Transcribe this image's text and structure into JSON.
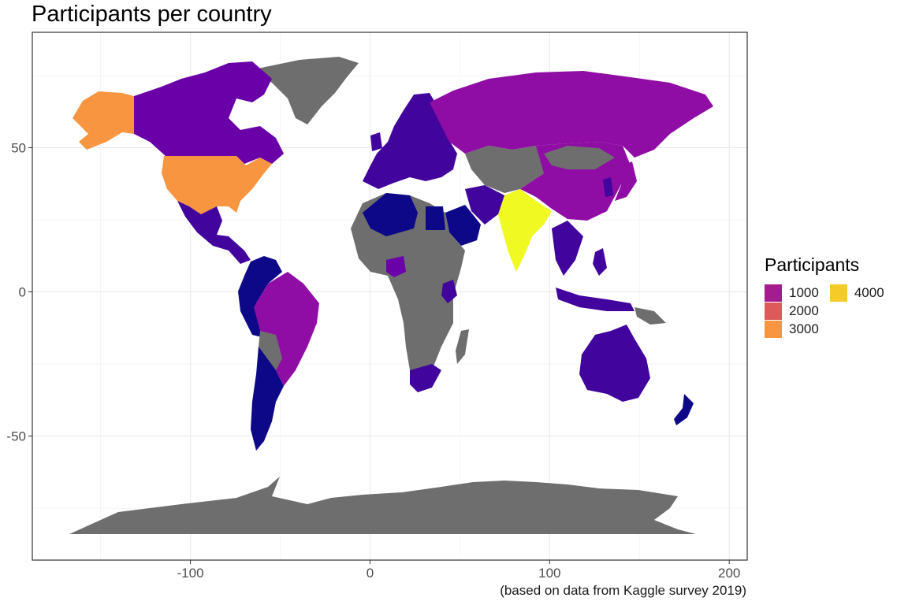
{
  "title": "Participants per country",
  "caption": "(based on data from Kaggle survey 2019)",
  "legend": {
    "title": "Participants",
    "items": [
      {
        "label": "1000",
        "color": "#a51c8e"
      },
      {
        "label": "2000",
        "color": "#de5a5a"
      },
      {
        "label": "3000",
        "color": "#f89540"
      },
      {
        "label": "4000",
        "color": "#f5cb28"
      }
    ]
  },
  "axes": {
    "x_ticks": [
      "-100",
      "0",
      "100",
      "200"
    ],
    "y_ticks": [
      "50",
      "0",
      "-50"
    ],
    "x_range": [
      -188,
      210
    ],
    "y_range": [
      -93,
      90
    ]
  },
  "colors": {
    "no_data": "#6e6e6e",
    "low": "#0d0887",
    "mid_low": "#41049d",
    "mid": "#6a00a8",
    "mid_high": "#8f0da4",
    "high": "#f89540",
    "max": "#f0f921",
    "panel_border": "#333333",
    "grid": "#ebebeb"
  }
}
